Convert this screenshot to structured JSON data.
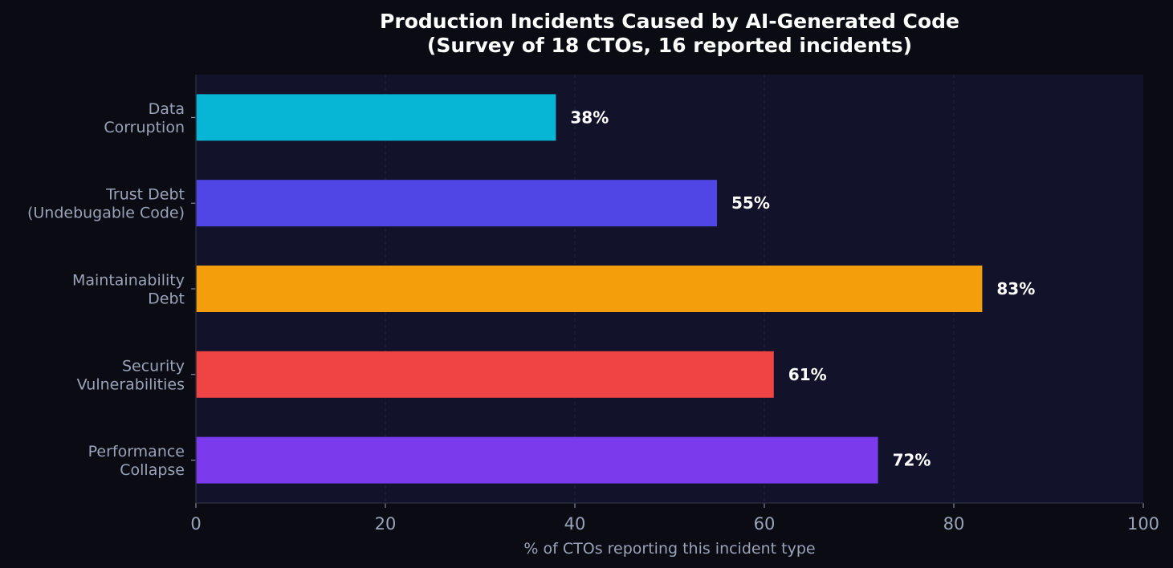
{
  "chart_data": {
    "type": "bar",
    "orientation": "horizontal",
    "title": "Production Incidents Caused by AI-Generated Code",
    "subtitle": "(Survey of 18 CTOs, 16 reported incidents)",
    "xlabel": "% of CTOs reporting this incident type",
    "ylabel": "",
    "xlim": [
      0,
      100
    ],
    "xticks": [
      "0",
      "20",
      "40",
      "60",
      "80",
      "100"
    ],
    "grid": true,
    "categories": [
      [
        "Data",
        "Corruption"
      ],
      [
        "Trust Debt",
        "(Undebugable Code)"
      ],
      [
        "Maintainability",
        "Debt"
      ],
      [
        "Security",
        "Vulnerabilities"
      ],
      [
        "Performance",
        "Collapse"
      ]
    ],
    "values": [
      38,
      55,
      83,
      61,
      72
    ],
    "value_labels": [
      "38%",
      "55%",
      "83%",
      "61%",
      "72%"
    ],
    "colors": [
      "#06b6d4",
      "#4f46e5",
      "#f59e0b",
      "#ef4444",
      "#7c3aed"
    ],
    "background": "#0b0b14",
    "plot_background": "#12122a"
  }
}
